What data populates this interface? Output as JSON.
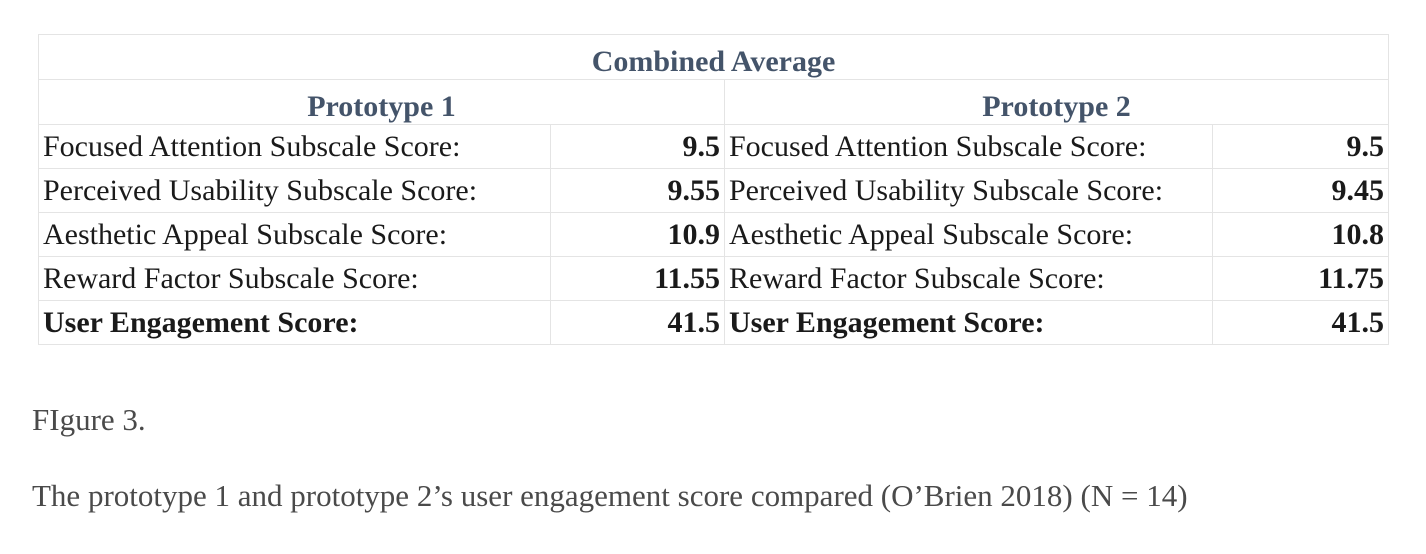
{
  "table": {
    "title": "Combined Average",
    "prototypes": [
      {
        "name": "Prototype 1",
        "rows": [
          {
            "label": "Focused Attention Subscale Score:",
            "value": "9.5"
          },
          {
            "label": "Perceived Usability Subscale Score:",
            "value": "9.55"
          },
          {
            "label": "Aesthetic Appeal Subscale Score:",
            "value": "10.9"
          },
          {
            "label": "Reward Factor Subscale Score:",
            "value": "11.55"
          },
          {
            "label": "User Engagement Score:",
            "value": "41.5"
          }
        ]
      },
      {
        "name": "Prototype 2",
        "rows": [
          {
            "label": "Focused Attention Subscale Score:",
            "value": "9.5"
          },
          {
            "label": "Perceived Usability Subscale Score:",
            "value": "9.45"
          },
          {
            "label": "Aesthetic Appeal Subscale Score:",
            "value": "10.8"
          },
          {
            "label": "Reward Factor Subscale Score:",
            "value": "11.75"
          },
          {
            "label": "User Engagement Score:",
            "value": "41.5"
          }
        ]
      }
    ]
  },
  "figure": {
    "label": "FIgure 3.",
    "caption": "The prototype 1 and prototype 2’s user engagement score compared (O’Brien 2018) (N = 14)"
  },
  "colors": {
    "header_text": "#44546a",
    "header_rule": "#8ea9db",
    "grid": "#e4e4e4",
    "caption_text": "#4a4a4a"
  }
}
